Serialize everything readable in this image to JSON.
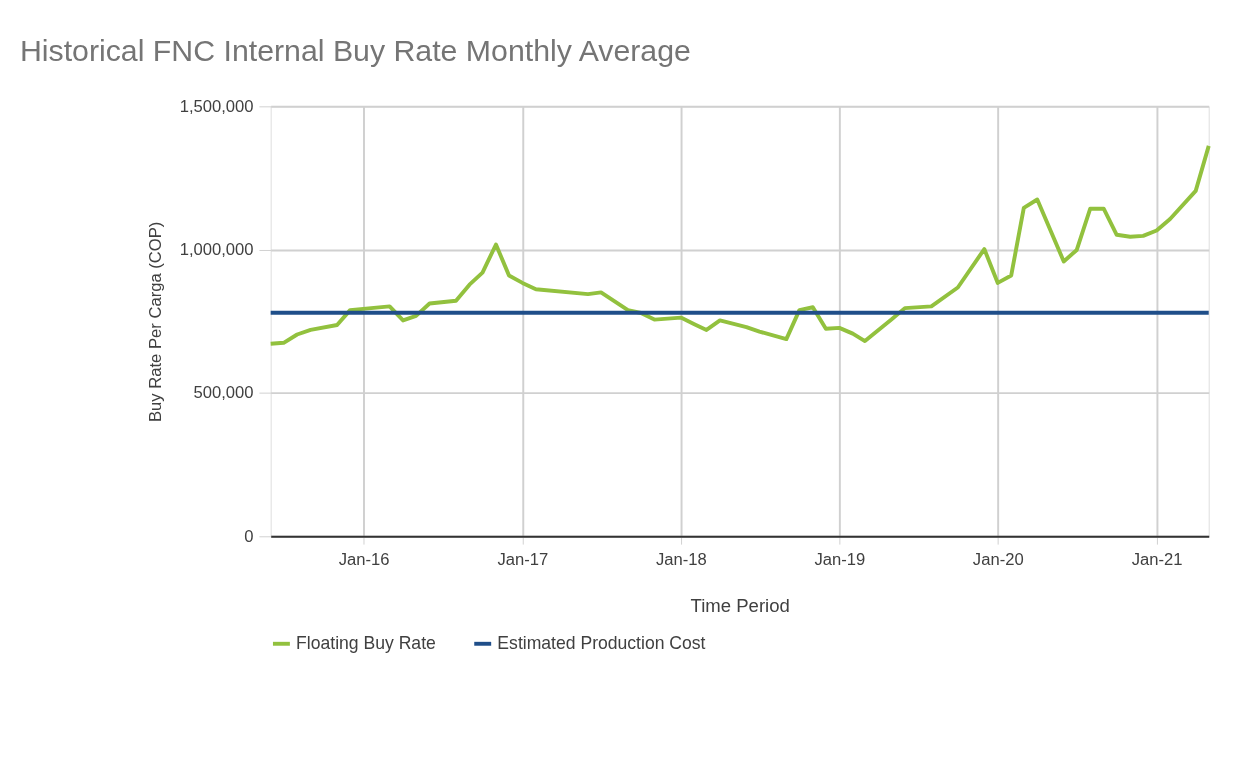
{
  "chart_data": {
    "type": "line",
    "title": "Historical FNC Internal Buy Rate Monthly Average",
    "xlabel": "Time Period",
    "ylabel": "Buy Rate Per Carga (COP)",
    "x": [
      "2015-06",
      "2015-07",
      "2015-08",
      "2015-09",
      "2015-11",
      "2015-12",
      "2016-03",
      "2016-04",
      "2016-05",
      "2016-06",
      "2016-08",
      "2016-09",
      "2016-10",
      "2016-11",
      "2016-12",
      "2017-01",
      "2017-02",
      "2017-06",
      "2017-07",
      "2017-09",
      "2017-10",
      "2017-11",
      "2018-01",
      "2018-02",
      "2018-03",
      "2018-04",
      "2018-06",
      "2018-07",
      "2018-09",
      "2018-10",
      "2018-11",
      "2018-12",
      "2019-01",
      "2019-02",
      "2019-03",
      "2019-05",
      "2019-06",
      "2019-08",
      "2019-10",
      "2019-12",
      "2020-01",
      "2020-02",
      "2020-03",
      "2020-04",
      "2020-06",
      "2020-07",
      "2020-08",
      "2020-09",
      "2020-10",
      "2020-11",
      "2020-12",
      "2021-01",
      "2021-02",
      "2021-04",
      "2021-05"
    ],
    "series": [
      {
        "name": "Floating Buy Rate",
        "color": "#92c13e",
        "values": [
          672000,
          675000,
          704000,
          720000,
          737000,
          789000,
          802000,
          753000,
          769000,
          812000,
          822000,
          878000,
          920000,
          1018000,
          910000,
          884000,
          862000,
          845000,
          851000,
          789000,
          779000,
          756000,
          763000,
          740000,
          720000,
          753000,
          730000,
          714000,
          688000,
          789000,
          799000,
          724000,
          727000,
          707000,
          681000,
          756000,
          796000,
          802000,
          868000,
          1002000,
          884000,
          910000,
          1146000,
          1175000,
          959000,
          999000,
          1143000,
          1143000,
          1052000,
          1045000,
          1048000,
          1067000,
          1107000,
          1205000,
          1362000
        ]
      },
      {
        "name": "Estimated Production Cost",
        "color": "#1f4e89",
        "x": [
          "2015-06",
          "2021-05"
        ],
        "values": [
          780000,
          780000
        ]
      }
    ],
    "xlim": [
      "2015-06",
      "2021-05"
    ],
    "xticks": [
      {
        "value": "2016-01",
        "label": "Jan-16"
      },
      {
        "value": "2017-01",
        "label": "Jan-17"
      },
      {
        "value": "2018-01",
        "label": "Jan-18"
      },
      {
        "value": "2019-01",
        "label": "Jan-19"
      },
      {
        "value": "2020-01",
        "label": "Jan-20"
      },
      {
        "value": "2021-01",
        "label": "Jan-21"
      }
    ],
    "ylim": [
      0,
      1500000
    ],
    "yticks": [
      0,
      {
        "value": 500000,
        "label": "500,000"
      },
      {
        "value": 1000000,
        "label": "1,000,000"
      },
      {
        "value": 1500000,
        "label": "1,500,000"
      }
    ],
    "grid": true,
    "legend": "bottom",
    "marker": "none",
    "line_style": "solid"
  }
}
